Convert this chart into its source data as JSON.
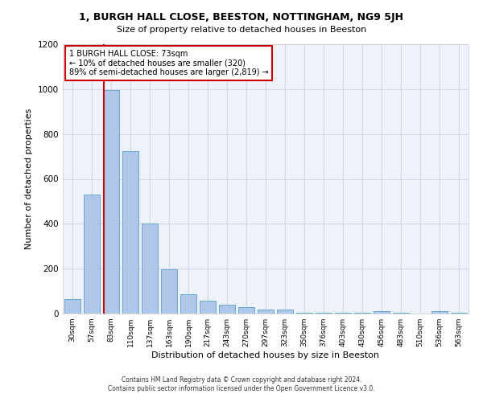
{
  "title1": "1, BURGH HALL CLOSE, BEESTON, NOTTINGHAM, NG9 5JH",
  "title2": "Size of property relative to detached houses in Beeston",
  "xlabel": "Distribution of detached houses by size in Beeston",
  "ylabel": "Number of detached properties",
  "footer1": "Contains HM Land Registry data © Crown copyright and database right 2024.",
  "footer2": "Contains public sector information licensed under the Open Government Licence v3.0.",
  "bar_labels": [
    "30sqm",
    "57sqm",
    "83sqm",
    "110sqm",
    "137sqm",
    "163sqm",
    "190sqm",
    "217sqm",
    "243sqm",
    "270sqm",
    "297sqm",
    "323sqm",
    "350sqm",
    "376sqm",
    "403sqm",
    "430sqm",
    "456sqm",
    "483sqm",
    "510sqm",
    "536sqm",
    "563sqm"
  ],
  "bar_values": [
    65,
    530,
    995,
    725,
    400,
    197,
    87,
    57,
    40,
    30,
    17,
    17,
    5,
    2,
    2,
    2,
    10,
    2,
    1,
    10,
    2
  ],
  "bar_color": "#aec7e8",
  "bar_edge_color": "#5a9ec9",
  "property_label": "1 BURGH HALL CLOSE: 73sqm",
  "annotation_line1": "← 10% of detached houses are smaller (320)",
  "annotation_line2": "89% of semi-detached houses are larger (2,819) →",
  "vline_color": "#cc0000",
  "vline_pos": 1.62,
  "annotation_box_color": "#ffffff",
  "annotation_box_edge": "#cc0000",
  "ylim": [
    0,
    1200
  ],
  "yticks": [
    0,
    200,
    400,
    600,
    800,
    1000,
    1200
  ],
  "grid_color": "#d0d8e8",
  "background_color": "#eef2fb"
}
